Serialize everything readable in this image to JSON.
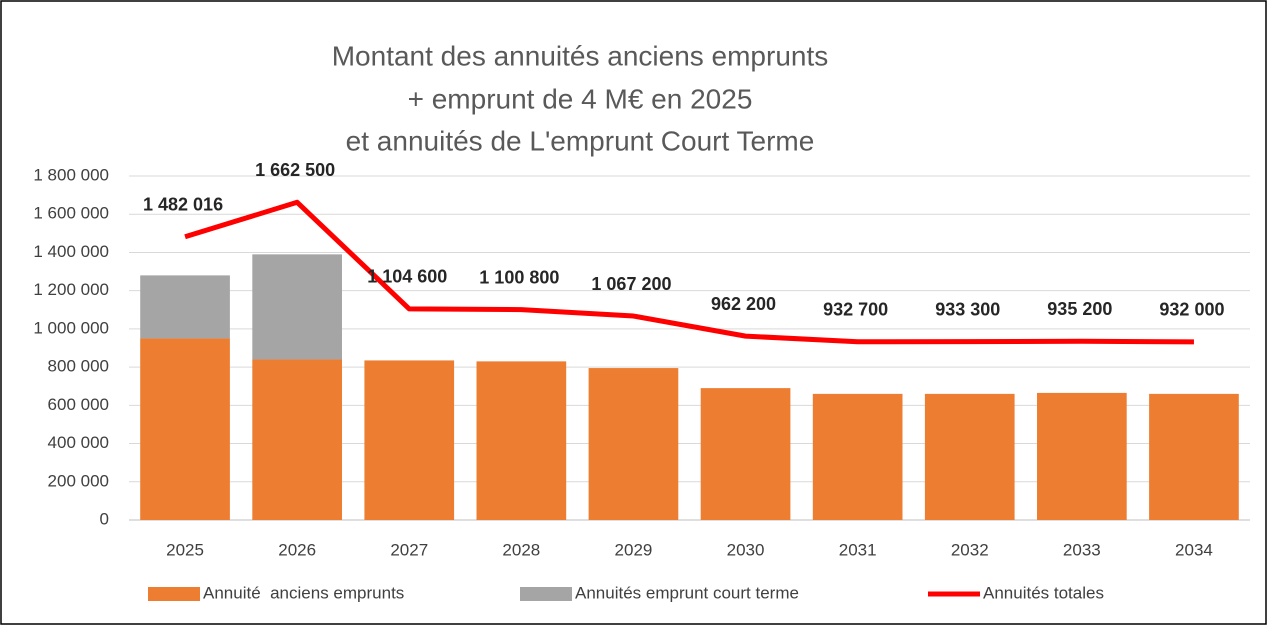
{
  "chart_data": {
    "type": "bar_line",
    "title": [
      "Montant des annuités anciens emprunts",
      "+ emprunt de 4 M€ en 2025",
      "et annuités de L'emprunt Court Terme"
    ],
    "categories": [
      "2025",
      "2026",
      "2027",
      "2028",
      "2029",
      "2030",
      "2031",
      "2032",
      "2033",
      "2034"
    ],
    "series": [
      {
        "name": "Annuité  anciens emprunts",
        "type": "bar",
        "color": "#ed7d31",
        "values": [
          950000,
          840000,
          835000,
          830000,
          795000,
          690000,
          660000,
          660000,
          665000,
          660000
        ]
      },
      {
        "name": "Annuités emprunt court terme",
        "type": "bar",
        "color": "#a5a5a5",
        "values": [
          330000,
          550000,
          null,
          null,
          null,
          null,
          null,
          null,
          null,
          null
        ]
      },
      {
        "name": "Annuités totales",
        "type": "line",
        "color": "#ff0000",
        "values": [
          1482016,
          1662500,
          1104600,
          1100800,
          1067200,
          962200,
          932700,
          933300,
          935200,
          932000
        ],
        "value_labels": [
          "1 482 016",
          "1 662 500",
          "1 104 600",
          "1 100 800",
          "1 067 200",
          "962 200",
          "932 700",
          "933 300",
          "935 200",
          "932 000"
        ]
      }
    ],
    "stacked": true,
    "ylim": [
      0,
      1800000
    ],
    "yticks": [
      0,
      {
        "value": 200000,
        "label": "200 000"
      },
      {
        "value": 400000,
        "label": "400 000"
      },
      {
        "value": 600000,
        "label": "600 000"
      },
      {
        "value": 800000,
        "label": "800 000"
      },
      {
        "value": 1000000,
        "label": "1 000 000"
      },
      {
        "value": 1200000,
        "label": "1 200 000"
      },
      {
        "value": 1400000,
        "label": "1 400 000"
      },
      {
        "value": 1600000,
        "label": "1 600 000"
      },
      {
        "value": 1800000,
        "label": "1 800 000"
      }
    ],
    "grid": true,
    "legend": "bottom"
  }
}
